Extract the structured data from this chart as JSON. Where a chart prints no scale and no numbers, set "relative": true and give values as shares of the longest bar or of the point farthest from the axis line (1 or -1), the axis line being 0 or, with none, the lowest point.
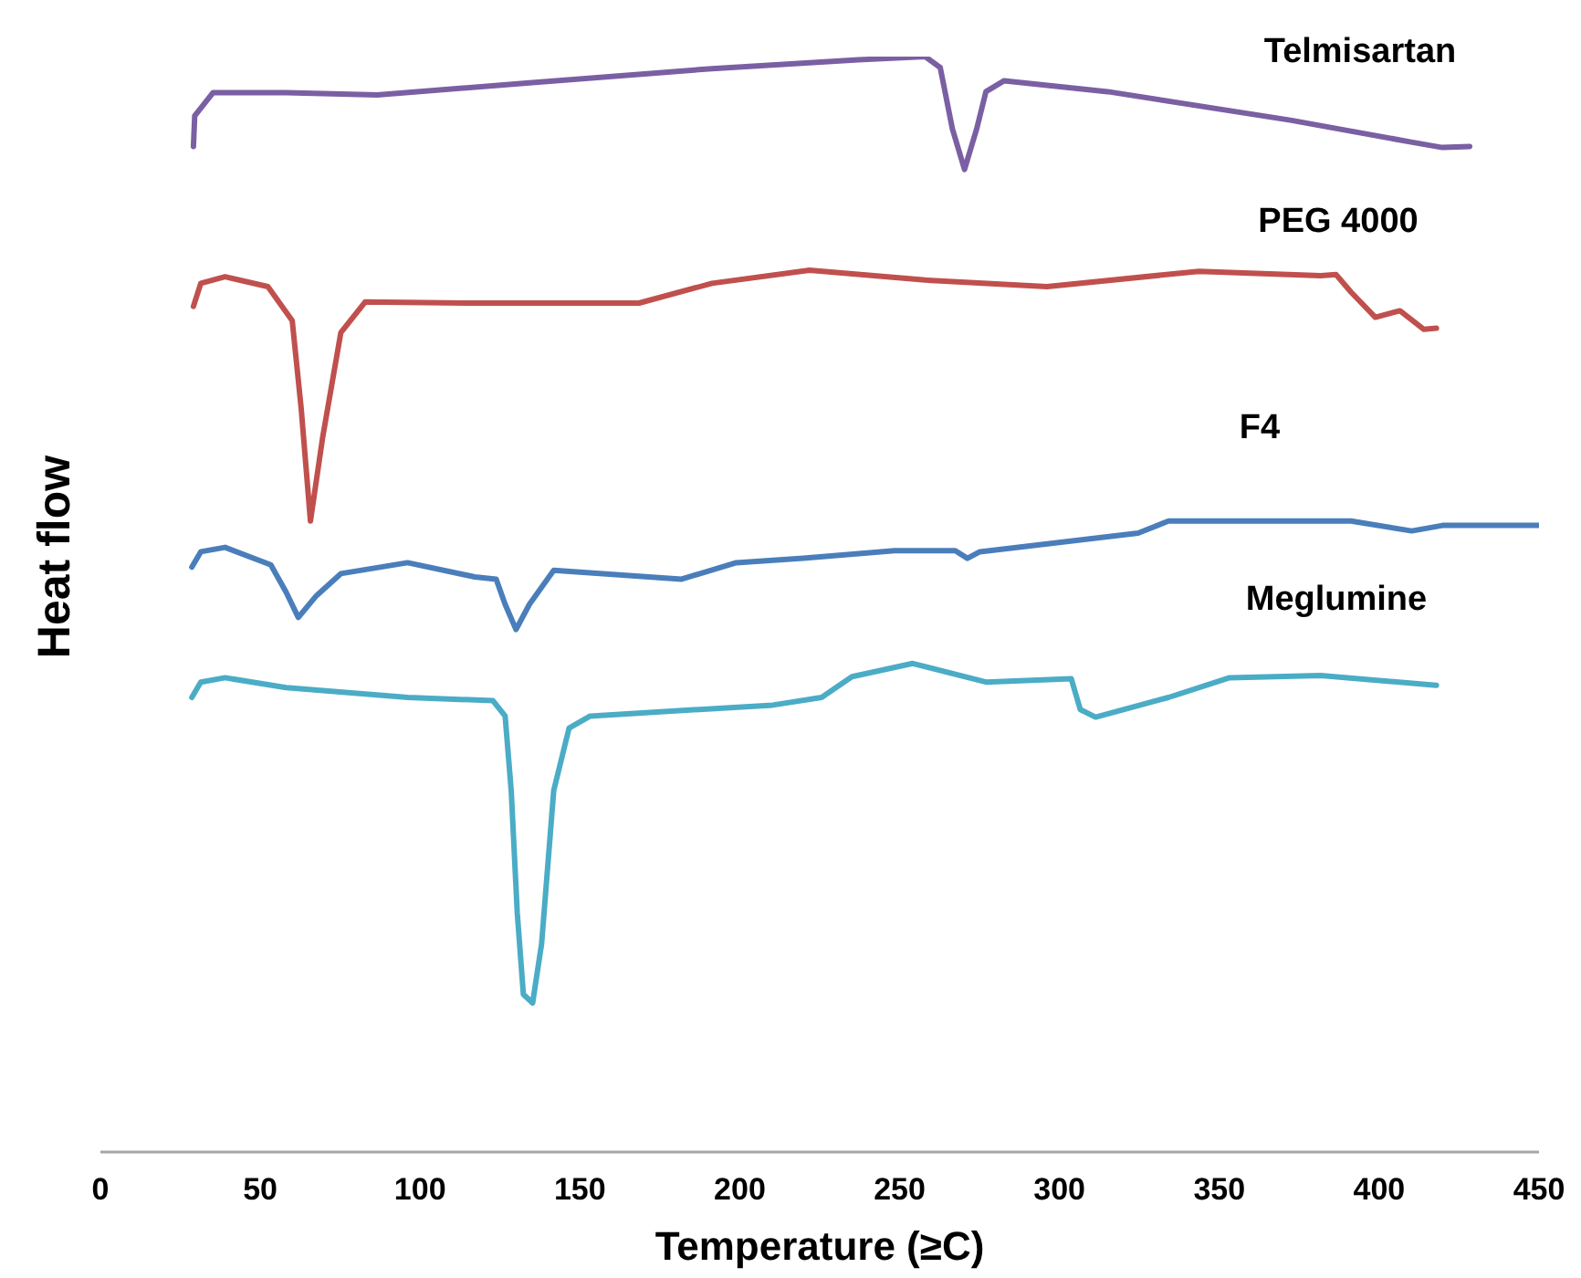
{
  "chart_data": {
    "type": "line",
    "relative": true,
    "xlabel": "Temperature (≥C)",
    "ylabel": "Heat flow",
    "xlim": [
      0,
      450
    ],
    "xticks": [
      0,
      50,
      100,
      150,
      200,
      250,
      300,
      350,
      400,
      450
    ],
    "marker": "none",
    "line_style": "solid",
    "series": [
      {
        "name": "Telmisartan",
        "color": "#7b5fa3",
        "x": [
          29.1,
          29.5,
          35.2,
          58.1,
          86.6,
          134.2,
          191.3,
          237,
          258,
          262.7,
          266.5,
          270.3,
          274.1,
          277,
          282.7,
          315.1,
          372.2,
          410,
          419.8,
          428.3
        ],
        "values": [
          0.918,
          0.946,
          0.967,
          0.967,
          0.965,
          0.976,
          0.989,
          0.997,
          1,
          0.99,
          0.934,
          0.897,
          0.934,
          0.968,
          0.978,
          0.968,
          0.942,
          0.922,
          0.917,
          0.918
        ]
      },
      {
        "name": "PEG 4000",
        "color": "#c0504d",
        "x": [
          29.1,
          31.4,
          39,
          52.4,
          60,
          62.8,
          65.7,
          69.5,
          75.2,
          82.8,
          115.2,
          168.5,
          191.3,
          221.8,
          258,
          296.1,
          343.6,
          381.7,
          386.5,
          391.2,
          398.8,
          406.5,
          414,
          417.9
        ],
        "values": [
          0.772,
          0.793,
          0.799,
          0.79,
          0.759,
          0.679,
          0.576,
          0.652,
          0.748,
          0.776,
          0.775,
          0.775,
          0.793,
          0.805,
          0.796,
          0.79,
          0.804,
          0.8,
          0.801,
          0.785,
          0.762,
          0.768,
          0.751,
          0.752
        ]
      },
      {
        "name": "F4",
        "color": "#4a7ebb",
        "x": [
          28.6,
          31.4,
          39,
          53.3,
          58.1,
          61.9,
          67.6,
          75.2,
          96.1,
          117.1,
          123.8,
          126.6,
          130,
          134.2,
          141.8,
          181.8,
          198.9,
          219.9,
          248.4,
          267.4,
          271.2,
          275.1,
          324.6,
          334.1,
          391.2,
          410.2,
          419.8,
          450
        ],
        "values": [
          0.534,
          0.548,
          0.552,
          0.536,
          0.511,
          0.488,
          0.508,
          0.528,
          0.538,
          0.525,
          0.523,
          0.5,
          0.477,
          0.5,
          0.531,
          0.523,
          0.538,
          0.542,
          0.549,
          0.549,
          0.542,
          0.548,
          0.565,
          0.576,
          0.576,
          0.567,
          0.572,
          0.572
        ]
      },
      {
        "name": "Meglumine",
        "color": "#4bacc6",
        "x": [
          28.6,
          31.4,
          39,
          58.1,
          96.1,
          122.8,
          126.6,
          128.5,
          130.4,
          132.3,
          135.2,
          138,
          141.8,
          146.6,
          153.2,
          210.3,
          225.6,
          235.1,
          254.1,
          277,
          303.7,
          306.5,
          311.3,
          334.1,
          353.2,
          381.7,
          417.9
        ],
        "values": [
          0.415,
          0.429,
          0.433,
          0.424,
          0.415,
          0.412,
          0.398,
          0.33,
          0.218,
          0.144,
          0.136,
          0.19,
          0.33,
          0.387,
          0.398,
          0.408,
          0.415,
          0.434,
          0.446,
          0.429,
          0.432,
          0.404,
          0.397,
          0.415,
          0.433,
          0.435,
          0.426
        ]
      }
    ]
  }
}
